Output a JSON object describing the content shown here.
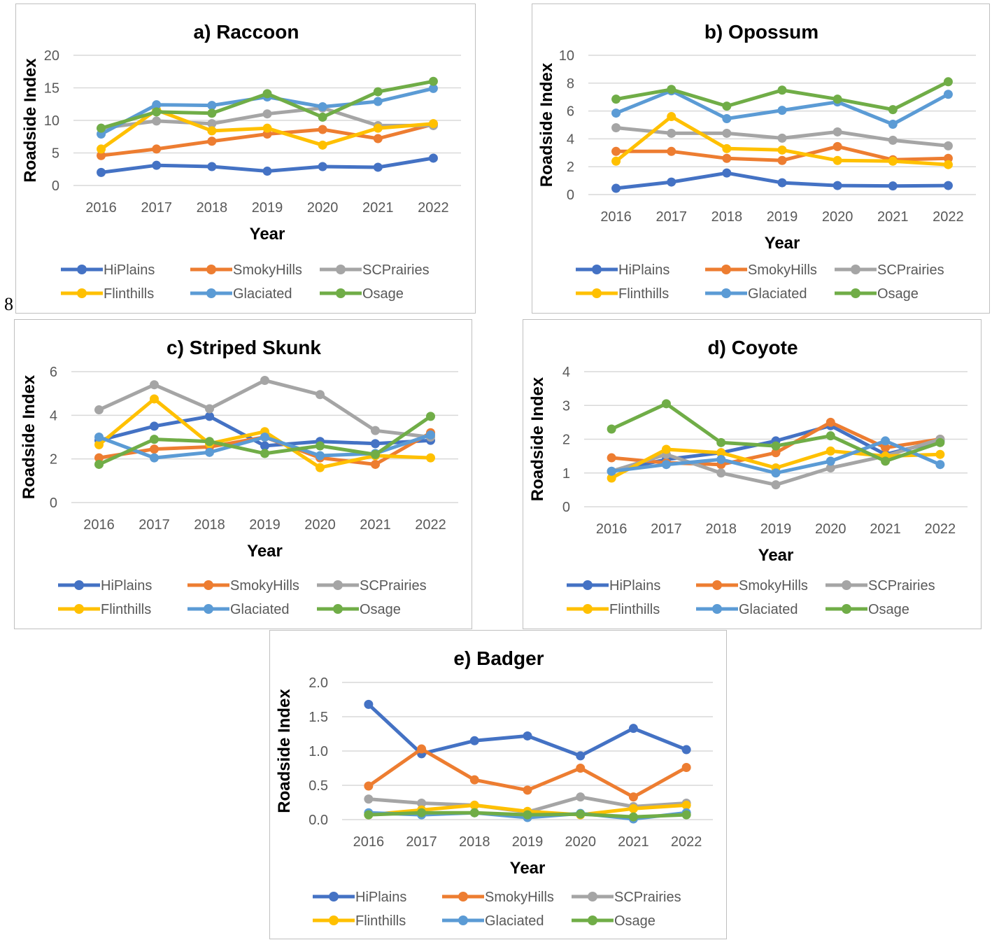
{
  "page_number": "8",
  "series_colors": {
    "HiPlains": "#4472C4",
    "SmokyHills": "#ED7D31",
    "SCPrairies": "#A5A5A5",
    "Flinthills": "#FFC000",
    "Glaciated": "#5B9BD5",
    "Osage": "#70AD47"
  },
  "chart_data": [
    {
      "type": "line",
      "title": "a) Raccoon",
      "xlabel": "Year",
      "ylabel": "Roadside Index",
      "categories": [
        "2016",
        "2017",
        "2018",
        "2019",
        "2020",
        "2021",
        "2022"
      ],
      "ylim": [
        0,
        20
      ],
      "yticks": [
        "0",
        "5",
        "10",
        "15",
        "20"
      ],
      "legend_position": "bottom",
      "series": [
        {
          "name": "HiPlains",
          "values": [
            2.0,
            3.1,
            2.9,
            2.2,
            2.9,
            2.8,
            4.2
          ]
        },
        {
          "name": "SmokyHills",
          "values": [
            4.6,
            5.6,
            6.8,
            7.9,
            8.6,
            7.2,
            9.4
          ]
        },
        {
          "name": "SCPrairies",
          "values": [
            8.8,
            9.9,
            9.5,
            11.0,
            11.9,
            9.2,
            9.2
          ]
        },
        {
          "name": "Flinthills",
          "values": [
            5.6,
            11.6,
            8.4,
            8.8,
            6.2,
            8.8,
            9.5
          ]
        },
        {
          "name": "Glaciated",
          "values": [
            7.9,
            12.4,
            12.3,
            13.6,
            12.1,
            12.9,
            14.9
          ]
        },
        {
          "name": "Osage",
          "values": [
            8.8,
            11.3,
            11.1,
            14.1,
            10.5,
            14.4,
            16.0
          ]
        }
      ]
    },
    {
      "type": "line",
      "title": "b) Opossum",
      "xlabel": "Year",
      "ylabel": "Roadside Index",
      "categories": [
        "2016",
        "2017",
        "2018",
        "2019",
        "2020",
        "2021",
        "2022"
      ],
      "ylim": [
        0,
        10
      ],
      "yticks": [
        "0",
        "2",
        "4",
        "6",
        "8",
        "10"
      ],
      "legend_position": "bottom",
      "series": [
        {
          "name": "HiPlains",
          "values": [
            0.45,
            0.9,
            1.55,
            0.85,
            0.65,
            0.62,
            0.65
          ]
        },
        {
          "name": "SmokyHills",
          "values": [
            3.1,
            3.1,
            2.6,
            2.45,
            3.45,
            2.5,
            2.6
          ]
        },
        {
          "name": "SCPrairies",
          "values": [
            4.8,
            4.4,
            4.4,
            4.05,
            4.5,
            3.9,
            3.5
          ]
        },
        {
          "name": "Flinthills",
          "values": [
            2.4,
            5.6,
            3.3,
            3.2,
            2.45,
            2.4,
            2.15
          ]
        },
        {
          "name": "Glaciated",
          "values": [
            5.85,
            7.45,
            5.45,
            6.05,
            6.65,
            5.05,
            7.2
          ]
        },
        {
          "name": "Osage",
          "values": [
            6.85,
            7.55,
            6.35,
            7.5,
            6.85,
            6.1,
            8.1
          ]
        }
      ]
    },
    {
      "type": "line",
      "title": "c) Striped Skunk",
      "xlabel": "Year",
      "ylabel": "Roadside Index",
      "categories": [
        "2016",
        "2017",
        "2018",
        "2019",
        "2020",
        "2021",
        "2022"
      ],
      "ylim": [
        0,
        6
      ],
      "yticks": [
        "0",
        "2",
        "4",
        "6"
      ],
      "legend_position": "bottom",
      "series": [
        {
          "name": "HiPlains",
          "values": [
            2.85,
            3.5,
            3.95,
            2.6,
            2.8,
            2.7,
            2.85
          ]
        },
        {
          "name": "SmokyHills",
          "values": [
            2.05,
            2.45,
            2.55,
            3.0,
            2.05,
            1.75,
            3.2
          ]
        },
        {
          "name": "SCPrairies",
          "values": [
            4.25,
            5.4,
            4.3,
            5.6,
            4.95,
            3.3,
            3.0
          ]
        },
        {
          "name": "Flinthills",
          "values": [
            2.65,
            4.75,
            2.7,
            3.25,
            1.6,
            2.15,
            2.05
          ]
        },
        {
          "name": "Glaciated",
          "values": [
            3.0,
            2.05,
            2.3,
            3.0,
            2.15,
            2.25,
            3.1
          ]
        },
        {
          "name": "Osage",
          "values": [
            1.75,
            2.9,
            2.8,
            2.25,
            2.6,
            2.2,
            3.95
          ]
        }
      ]
    },
    {
      "type": "line",
      "title": "d) Coyote",
      "xlabel": "Year",
      "ylabel": "Roadside Index",
      "categories": [
        "2016",
        "2017",
        "2018",
        "2019",
        "2020",
        "2021",
        "2022"
      ],
      "ylim": [
        0,
        4
      ],
      "yticks": [
        "0",
        "1",
        "2",
        "3",
        "4"
      ],
      "legend_position": "bottom",
      "series": [
        {
          "name": "HiPlains",
          "values": [
            1.05,
            1.4,
            1.6,
            1.95,
            2.4,
            1.55,
            1.95
          ]
        },
        {
          "name": "SmokyHills",
          "values": [
            1.45,
            1.3,
            1.25,
            1.6,
            2.5,
            1.75,
            2.0
          ]
        },
        {
          "name": "SCPrairies",
          "values": [
            1.05,
            1.55,
            1.0,
            0.65,
            1.15,
            1.5,
            2.0
          ]
        },
        {
          "name": "Flinthills",
          "values": [
            0.85,
            1.7,
            1.6,
            1.15,
            1.65,
            1.5,
            1.55
          ]
        },
        {
          "name": "Glaciated",
          "values": [
            1.05,
            1.25,
            1.4,
            1.0,
            1.35,
            1.95,
            1.25
          ]
        },
        {
          "name": "Osage",
          "values": [
            2.3,
            3.05,
            1.9,
            1.8,
            2.1,
            1.35,
            1.9
          ]
        }
      ]
    },
    {
      "type": "line",
      "title": "e) Badger",
      "xlabel": "Year",
      "ylabel": "Roadside Index",
      "categories": [
        "2016",
        "2017",
        "2018",
        "2019",
        "2020",
        "2021",
        "2022"
      ],
      "ylim": [
        0,
        2
      ],
      "yticks": [
        "0.0",
        "0.5",
        "1.0",
        "1.5",
        "2.0"
      ],
      "legend_position": "bottom",
      "series": [
        {
          "name": "HiPlains",
          "values": [
            1.68,
            0.96,
            1.15,
            1.22,
            0.93,
            1.33,
            1.02
          ]
        },
        {
          "name": "SmokyHills",
          "values": [
            0.49,
            1.03,
            0.58,
            0.43,
            0.75,
            0.33,
            0.76
          ]
        },
        {
          "name": "SCPrairies",
          "values": [
            0.3,
            0.24,
            0.21,
            0.11,
            0.33,
            0.19,
            0.24
          ]
        },
        {
          "name": "Flinthills",
          "values": [
            0.07,
            0.14,
            0.21,
            0.12,
            0.07,
            0.16,
            0.21
          ]
        },
        {
          "name": "Glaciated",
          "values": [
            0.1,
            0.07,
            0.1,
            0.03,
            0.09,
            0.01,
            0.1
          ]
        },
        {
          "name": "Osage",
          "values": [
            0.07,
            0.1,
            0.1,
            0.07,
            0.08,
            0.04,
            0.07
          ]
        }
      ]
    }
  ]
}
